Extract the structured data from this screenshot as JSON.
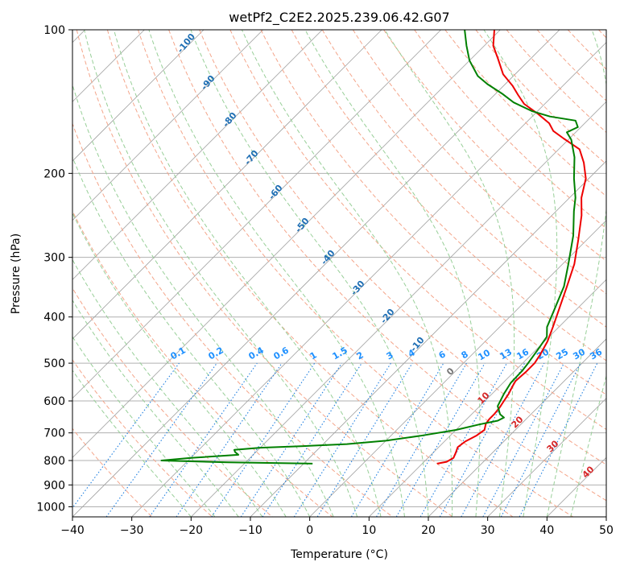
{
  "chart_data": {
    "type": "line",
    "title": "wetPf2_C2E2.2025.239.06.42.G07",
    "xlabel": "Temperature (°C)",
    "ylabel": "Pressure (hPa)",
    "xlim": [
      -40,
      50
    ],
    "ylim": [
      1050,
      100
    ],
    "yscale": "log",
    "skew": "skew-T log-P",
    "x_ticks": [
      -40,
      -30,
      -20,
      -10,
      0,
      10,
      20,
      30,
      40,
      50
    ],
    "y_ticks": [
      100,
      200,
      300,
      400,
      500,
      600,
      700,
      800,
      900,
      1000
    ],
    "grid": true,
    "series": [
      {
        "role": "temperature",
        "color": "#ee0000",
        "points": [
          [
            12.5,
            812
          ],
          [
            13.8,
            805
          ],
          [
            14.3,
            790
          ],
          [
            13.8,
            770
          ],
          [
            13.2,
            750
          ],
          [
            13.5,
            730
          ],
          [
            14.4,
            710
          ],
          [
            14.8,
            690
          ],
          [
            14.0,
            670
          ],
          [
            13.8,
            655
          ],
          [
            13.8,
            640
          ],
          [
            13.6,
            620
          ],
          [
            13.2,
            600
          ],
          [
            12.8,
            580
          ],
          [
            12.2,
            560
          ],
          [
            11.8,
            545
          ],
          [
            12.0,
            520
          ],
          [
            12.0,
            500
          ],
          [
            11.5,
            480
          ],
          [
            10.5,
            450
          ],
          [
            9.0,
            420
          ],
          [
            7.0,
            385
          ],
          [
            4.5,
            345
          ],
          [
            2.0,
            310
          ],
          [
            -1.5,
            275
          ],
          [
            -5.0,
            245
          ],
          [
            -8.0,
            225
          ],
          [
            -10.5,
            205
          ],
          [
            -13.5,
            190
          ],
          [
            -16.5,
            178
          ],
          [
            -21.0,
            169
          ],
          [
            -24.0,
            163
          ],
          [
            -26.0,
            157
          ],
          [
            -29.5,
            150
          ],
          [
            -33.5,
            143
          ],
          [
            -36.0,
            137
          ],
          [
            -38.5,
            131
          ],
          [
            -42.0,
            124
          ],
          [
            -45.5,
            115
          ],
          [
            -48.5,
            108
          ],
          [
            -51.0,
            100
          ]
        ]
      },
      {
        "role": "dewpoint",
        "color": "#008000",
        "points": [
          [
            -8.5,
            812
          ],
          [
            -23.0,
            807
          ],
          [
            -34.5,
            800
          ],
          [
            -30.0,
            790
          ],
          [
            -22.5,
            778
          ],
          [
            -23.5,
            768
          ],
          [
            -24.0,
            760
          ],
          [
            -20.0,
            752
          ],
          [
            -13.0,
            746
          ],
          [
            -6.0,
            739
          ],
          [
            0.0,
            727
          ],
          [
            5.0,
            710
          ],
          [
            10.0,
            690
          ],
          [
            13.0,
            672
          ],
          [
            15.5,
            660
          ],
          [
            16.0,
            650
          ],
          [
            14.8,
            640
          ],
          [
            13.0,
            615
          ],
          [
            12.0,
            580
          ],
          [
            11.3,
            550
          ],
          [
            11.2,
            520
          ],
          [
            10.9,
            500
          ],
          [
            10.3,
            470
          ],
          [
            9.6,
            440
          ],
          [
            8.0,
            420
          ],
          [
            6.5,
            390
          ],
          [
            4.0,
            345
          ],
          [
            1.0,
            310
          ],
          [
            -3.0,
            270
          ],
          [
            -7.0,
            240
          ],
          [
            -9.0,
            225
          ],
          [
            -12.5,
            205
          ],
          [
            -16.0,
            185
          ],
          [
            -19.5,
            170
          ],
          [
            -21.5,
            164
          ],
          [
            -20.5,
            160
          ],
          [
            -22.0,
            155
          ],
          [
            -27.0,
            152
          ],
          [
            -31.0,
            148
          ],
          [
            -35.5,
            142
          ],
          [
            -39.0,
            136
          ],
          [
            -43.0,
            130
          ],
          [
            -46.0,
            125
          ],
          [
            -50.0,
            116
          ],
          [
            -53.0,
            108
          ],
          [
            -56.0,
            100
          ]
        ]
      }
    ],
    "dry_adiabat_labels": [
      "-100",
      "-90",
      "-80",
      "-70",
      "-60",
      "-50",
      "-40",
      "-30",
      "-20",
      "-10"
    ],
    "moist_adiabat_labels": [
      "0",
      "10",
      "20",
      "30",
      "40"
    ],
    "mixing_ratio_labels": [
      "0.1",
      "0.2",
      "0.4",
      "0.6",
      "1",
      "1.5",
      "2",
      "3",
      "4",
      "6",
      "8",
      "10",
      "13",
      "16",
      "20",
      "25",
      "30",
      "36"
    ]
  },
  "colors": {
    "grid": "#b0b0b0",
    "isotherm": "#a0a0a0",
    "dry_adiabat": "#f4a58a",
    "moist_adiabat": "#98cf98",
    "mixing_ratio": "#1f7fe0",
    "dry_adiabat_label": "#1f6fb4",
    "moist_adiabat_label": "#d62728",
    "mixing_ratio_label": "#1e90ff",
    "temperature": "#ee0000",
    "dewpoint": "#008000"
  }
}
